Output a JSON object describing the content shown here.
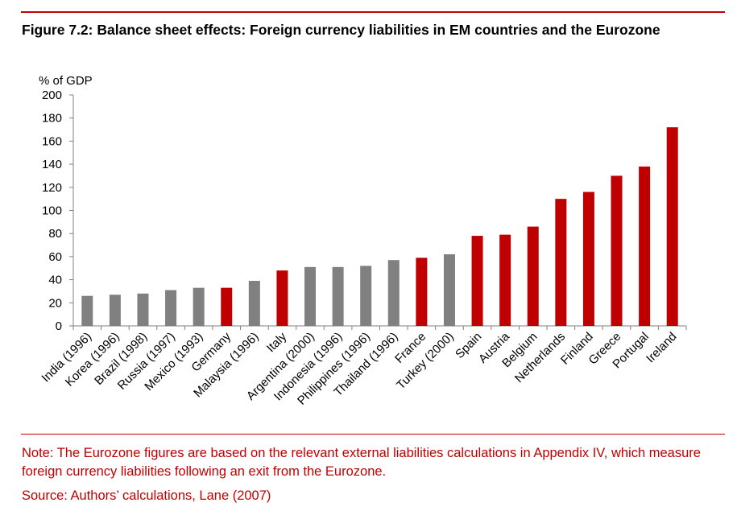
{
  "figure": {
    "title": "Figure 7.2: Balance sheet effects: Foreign currency liabilities in EM countries and the Eurozone",
    "note": "Note: The Eurozone figures are based on the relevant external liabilities calculations in Appendix IV, which measure foreign currency liabilities following an exit from the Eurozone.",
    "source": "Source: Authors’ calculations, Lane (2007)"
  },
  "colors": {
    "em": "#808080",
    "eurozone": "#c00000",
    "axis": "#808080",
    "accent": "#c00000"
  },
  "chart_data": {
    "type": "bar",
    "title": "Figure 7.2: Balance sheet effects: Foreign currency liabilities in EM countries and the Eurozone",
    "xlabel": "",
    "ylabel": "% of GDP",
    "ylim": [
      0,
      200
    ],
    "yticks": [
      0,
      20,
      40,
      60,
      80,
      100,
      120,
      140,
      160,
      180,
      200
    ],
    "grid": false,
    "categories": [
      "India (1996)",
      "Korea (1996)",
      "Brazil (1998)",
      "Russia (1997)",
      "Mexico (1993)",
      "Germany",
      "Malaysia (1996)",
      "Italy",
      "Argentina (2000)",
      "Indonesia (1996)",
      "Philippines (1996)",
      "Thailand (1996)",
      "France",
      "Turkey (2000)",
      "Spain",
      "Austria",
      "Belgium",
      "Netherlands",
      "Finland",
      "Greece",
      "Portugal",
      "Ireland"
    ],
    "values": [
      26,
      27,
      28,
      31,
      33,
      33,
      39,
      48,
      51,
      51,
      52,
      57,
      59,
      62,
      78,
      79,
      86,
      110,
      116,
      130,
      138,
      172
    ],
    "groups": [
      "EM",
      "EM",
      "EM",
      "EM",
      "EM",
      "Eurozone",
      "EM",
      "Eurozone",
      "EM",
      "EM",
      "EM",
      "EM",
      "Eurozone",
      "EM",
      "Eurozone",
      "Eurozone",
      "Eurozone",
      "Eurozone",
      "Eurozone",
      "Eurozone",
      "Eurozone",
      "Eurozone"
    ]
  }
}
